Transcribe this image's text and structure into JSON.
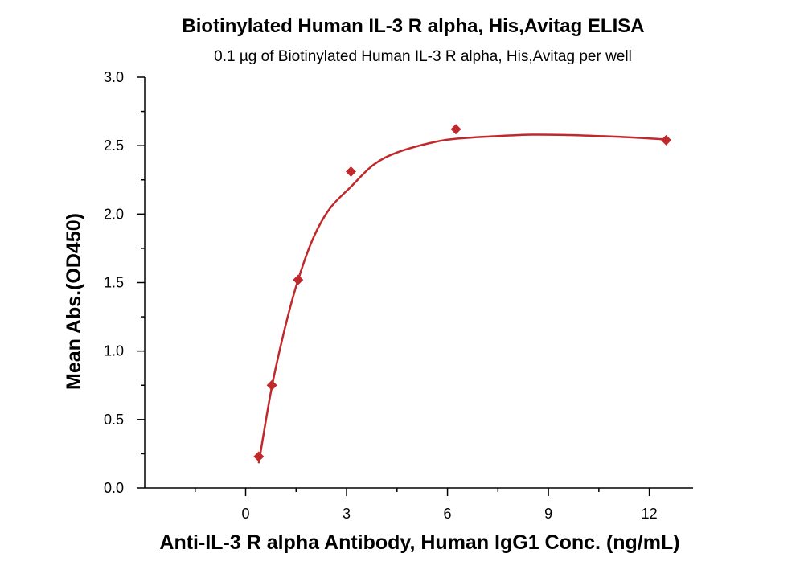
{
  "chart_data": {
    "type": "scatter",
    "title": "Biotinylated Human IL-3 R alpha, His,Avitag ELISA",
    "subtitle": "0.1 µg of Biotinylated Human IL-3 R alpha, His,Avitag per well",
    "xlabel": "Anti-IL-3 R alpha Antibody, Human IgG1 Conc. (ng/mL)",
    "ylabel": "Mean Abs.(OD450)",
    "xlim": [
      -3,
      13.3
    ],
    "ylim": [
      0,
      3.0
    ],
    "x_ticks": [
      0,
      3,
      6,
      9,
      12
    ],
    "y_ticks": [
      0.0,
      0.5,
      1.0,
      1.5,
      2.0,
      2.5,
      3.0
    ],
    "x_tick_labels": [
      "0",
      "3",
      "6",
      "9",
      "12"
    ],
    "y_tick_labels": [
      "0.0",
      "0.5",
      "1.0",
      "1.5",
      "2.0",
      "2.5",
      "3.0"
    ],
    "grid": false,
    "series": [
      {
        "x": [
          0.39,
          0.78,
          1.56,
          3.13,
          6.25,
          12.5
        ],
        "y": [
          0.23,
          0.75,
          1.52,
          2.31,
          2.62,
          2.54
        ],
        "fit_curve": [
          [
            0.39,
            0.18
          ],
          [
            0.78,
            0.74
          ],
          [
            1.2,
            1.2
          ],
          [
            1.56,
            1.52
          ],
          [
            2.0,
            1.82
          ],
          [
            2.5,
            2.04
          ],
          [
            3.13,
            2.2
          ],
          [
            3.8,
            2.36
          ],
          [
            4.5,
            2.45
          ],
          [
            5.5,
            2.52
          ],
          [
            6.25,
            2.55
          ],
          [
            7.5,
            2.57
          ],
          [
            8.5,
            2.58
          ],
          [
            9.5,
            2.578
          ],
          [
            10.5,
            2.57
          ],
          [
            11.5,
            2.56
          ],
          [
            12.5,
            2.545
          ]
        ]
      }
    ],
    "colors": {
      "series": "#c0292b"
    }
  }
}
